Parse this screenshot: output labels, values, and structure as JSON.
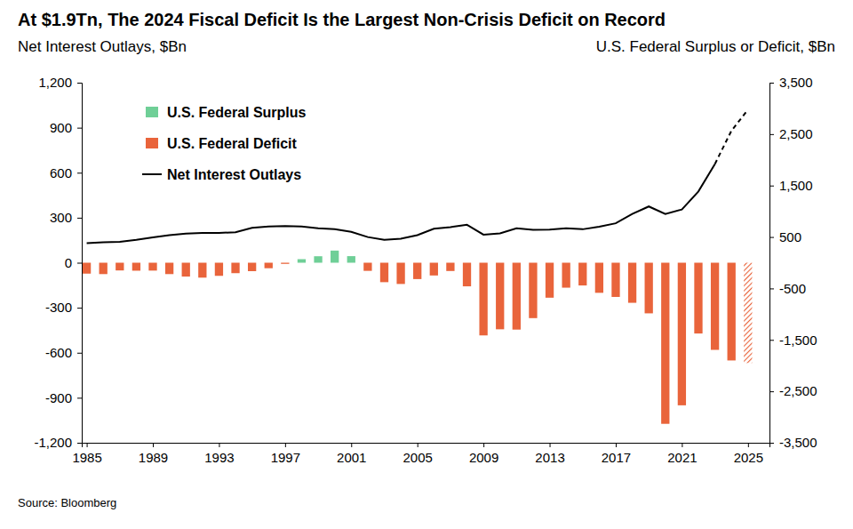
{
  "chart_data": {
    "type": "bar",
    "title": "At $1.9Tn, The 2024 Fiscal Deficit Is the Largest Non-Crisis Deficit on Record",
    "ylabel": "Net Interest Outlays, $Bn",
    "y2label": "U.S. Federal Surplus or Deficit, $Bn",
    "source": "Source: Bloomberg",
    "legend": "upper left",
    "grid": false,
    "x": [
      1985,
      1986,
      1987,
      1988,
      1989,
      1990,
      1991,
      1992,
      1993,
      1994,
      1995,
      1996,
      1997,
      1998,
      1999,
      2000,
      2001,
      2002,
      2003,
      2004,
      2005,
      2006,
      2007,
      2008,
      2009,
      2010,
      2011,
      2012,
      2013,
      2014,
      2015,
      2016,
      2017,
      2018,
      2019,
      2020,
      2021,
      2022,
      2023,
      2024,
      2025
    ],
    "xlim": [
      1984.7,
      2026.3
    ],
    "xticks": [
      1985,
      1989,
      1993,
      1997,
      2001,
      2005,
      2009,
      2013,
      2017,
      2021,
      2025
    ],
    "ylim": [
      -1200,
      1200
    ],
    "yticks": [
      {
        "value": 1200,
        "label": "1,200"
      },
      900,
      600,
      300,
      0,
      -300,
      -600,
      -900,
      {
        "value": -1200,
        "label": "-1,200"
      }
    ],
    "y2lim": [
      -3500,
      3500
    ],
    "y2ticks": [
      {
        "value": 3500,
        "label": "3,500"
      },
      {
        "value": 2500,
        "label": "2,500"
      },
      {
        "value": 1500,
        "label": "1,500"
      },
      500,
      -500,
      {
        "value": -1500,
        "label": "-1,500"
      },
      {
        "value": -2500,
        "label": "-2,500"
      },
      {
        "value": -3500,
        "label": "-3,500"
      }
    ],
    "series": [
      {
        "name": "U.S. Federal Surplus",
        "type": "bar",
        "axis": "y2",
        "color": "#6fcf97",
        "values": [
          null,
          null,
          null,
          null,
          null,
          null,
          null,
          null,
          null,
          null,
          null,
          null,
          null,
          69,
          126,
          236,
          128,
          null,
          null,
          null,
          null,
          null,
          null,
          null,
          null,
          null,
          null,
          null,
          null,
          null,
          null,
          null,
          null,
          null,
          null,
          null,
          null,
          null,
          null,
          null,
          null
        ]
      },
      {
        "name": "U.S. Federal Deficit",
        "type": "bar",
        "axis": "y2",
        "color": "#e9643b",
        "values": [
          -212,
          -221,
          -150,
          -155,
          -153,
          -221,
          -269,
          -290,
          -255,
          -203,
          -164,
          -107,
          -22,
          null,
          null,
          null,
          null,
          -158,
          -378,
          -413,
          -318,
          -248,
          -161,
          -459,
          -1413,
          -1294,
          -1300,
          -1077,
          -680,
          -485,
          -442,
          -585,
          -665,
          -779,
          -984,
          -3132,
          -2772,
          -1376,
          -1694,
          -1900,
          null
        ]
      },
      {
        "type": "bar",
        "axis": "y2",
        "color": "#e9643b",
        "marker": "hatched",
        "values": [
          null,
          null,
          null,
          null,
          null,
          null,
          null,
          null,
          null,
          null,
          null,
          null,
          null,
          null,
          null,
          null,
          null,
          null,
          null,
          null,
          null,
          null,
          null,
          null,
          null,
          null,
          null,
          null,
          null,
          null,
          null,
          null,
          null,
          null,
          null,
          null,
          null,
          null,
          null,
          null,
          -1950
        ]
      },
      {
        "name": "Net Interest Outlays",
        "type": "line",
        "axis": "y",
        "color": "#000000",
        "line_style": "solid",
        "values": [
          130,
          136,
          139,
          152,
          169,
          184,
          194,
          199,
          199,
          203,
          232,
          241,
          244,
          241,
          230,
          223,
          206,
          171,
          153,
          160,
          184,
          227,
          237,
          253,
          187,
          196,
          230,
          220,
          221,
          229,
          223,
          240,
          263,
          325,
          375,
          325,
          355,
          475,
          658,
          null,
          null
        ]
      },
      {
        "type": "line",
        "axis": "y",
        "color": "#000000",
        "line_style": "dashed",
        "values": [
          null,
          null,
          null,
          null,
          null,
          null,
          null,
          null,
          null,
          null,
          null,
          null,
          null,
          null,
          null,
          null,
          null,
          null,
          null,
          null,
          null,
          null,
          null,
          null,
          null,
          null,
          null,
          null,
          null,
          null,
          null,
          null,
          null,
          null,
          null,
          null,
          null,
          null,
          658,
          880,
          1020
        ]
      }
    ]
  }
}
